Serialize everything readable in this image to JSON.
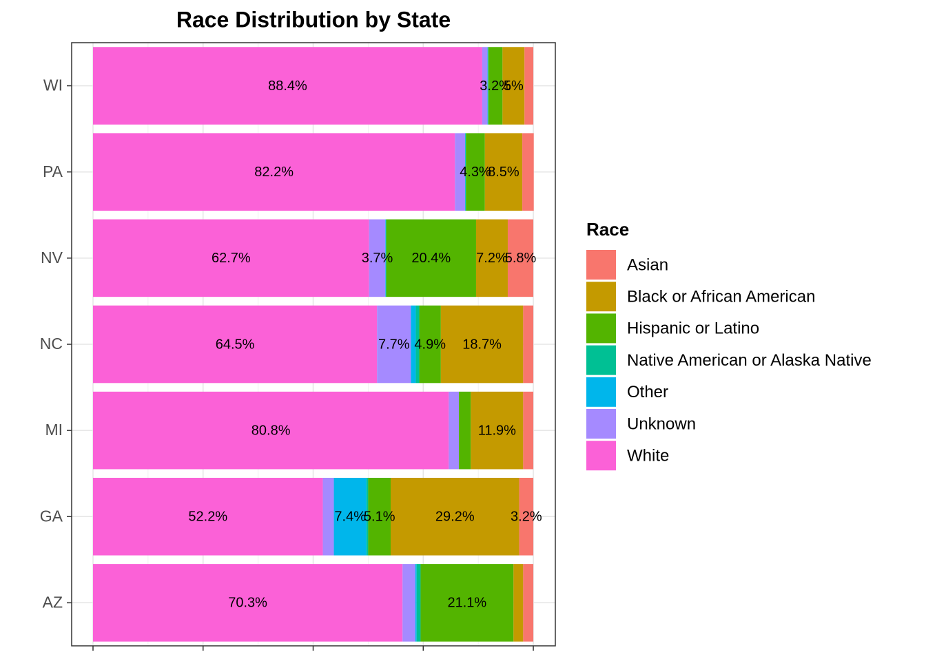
{
  "chart_data": {
    "type": "stacked-bar-horizontal",
    "title": "Race Distribution by State",
    "legend_title": "Race",
    "categories": [
      "AZ",
      "GA",
      "MI",
      "NC",
      "NV",
      "PA",
      "WI"
    ],
    "xlim": [
      -4.85,
      105
    ],
    "xticks": [
      0,
      25,
      50,
      75,
      100
    ],
    "grid": true,
    "legend": "right",
    "series": [
      {
        "name": "White",
        "color": "#FB61D7",
        "values": [
          70.3,
          52.2,
          80.8,
          64.5,
          62.7,
          82.2,
          88.4
        ],
        "value_labels": [
          "70.3%",
          "52.2%",
          "80.8%",
          "64.5%",
          "62.7%",
          "82.2%",
          "88.4%"
        ]
      },
      {
        "name": "Unknown",
        "color": "#A58AFF",
        "values": [
          2.9,
          2.5,
          2.3,
          7.7,
          3.7,
          2.3,
          1.2
        ],
        "value_labels": [
          null,
          null,
          null,
          "7.7%",
          "3.7%",
          null,
          null
        ]
      },
      {
        "name": "Other",
        "color": "#00B6EB",
        "values": [
          0.3,
          7.4,
          0,
          1.1,
          0.1,
          0.1,
          0.1
        ],
        "value_labels": [
          null,
          "7.4%",
          null,
          null,
          null,
          null,
          null
        ]
      },
      {
        "name": "Native American or Alaska Native",
        "color": "#00C094",
        "values": [
          0.9,
          0.4,
          0,
          0.8,
          0.1,
          0.1,
          0.1
        ],
        "value_labels": [
          null,
          null,
          null,
          null,
          null,
          null,
          null
        ]
      },
      {
        "name": "Hispanic or Latino",
        "color": "#53B400",
        "values": [
          21.1,
          5.1,
          2.7,
          4.9,
          20.4,
          4.3,
          3.2
        ],
        "value_labels": [
          "21.1%",
          "5.1%",
          null,
          "4.9%",
          "20.4%",
          "4.3%",
          "3.2%"
        ]
      },
      {
        "name": "Black or African American",
        "color": "#C49A00",
        "values": [
          2.2,
          29.2,
          11.9,
          18.7,
          7.2,
          8.5,
          5
        ],
        "value_labels": [
          null,
          "29.2%",
          "11.9%",
          "18.7%",
          "7.2%",
          "8.5%",
          "5%"
        ]
      },
      {
        "name": "Asian",
        "color": "#F8766D",
        "values": [
          2.3,
          3.2,
          2.3,
          2.3,
          5.8,
          2.6,
          2.0
        ],
        "value_labels": [
          null,
          "3.2%",
          null,
          null,
          "5.8%",
          null,
          null
        ]
      }
    ]
  }
}
